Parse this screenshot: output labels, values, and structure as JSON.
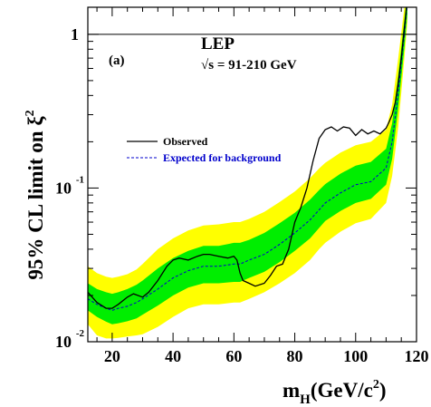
{
  "chart_data": {
    "type": "line",
    "panel_label": "(a)",
    "experiment": "LEP",
    "energy": "√s = 91-210 GeV",
    "xlabel": {
      "main": "m",
      "sub": "H",
      "rest": "(GeV/c",
      "sup": "2",
      "close": ")"
    },
    "ylabel": {
      "main": "95% CL limit on ξ",
      "sup": "2"
    },
    "xlim": [
      12,
      120
    ],
    "ylim": [
      0.01,
      1.5
    ],
    "yscale": "log",
    "x_ticks": [
      "20",
      "40",
      "60",
      "80",
      "100",
      "120"
    ],
    "y_ticks": [
      {
        "value": 1,
        "base": "1",
        "exp": ""
      },
      {
        "value": 0.1,
        "base": "10",
        "exp": "-1"
      },
      {
        "value": 0.01,
        "base": "10",
        "exp": "-2"
      }
    ],
    "reference_line": 1,
    "colors": {
      "band_2sigma": "#ffff00",
      "band_1sigma": "#00ee00",
      "observed": "#000000",
      "expected": "#0000cc",
      "expected_label": "#0000cc"
    },
    "series": [
      {
        "name": "Observed",
        "style": "solid",
        "x": [
          12,
          15,
          18,
          20,
          22,
          25,
          27,
          30,
          32,
          35,
          38,
          40,
          42,
          45,
          48,
          50,
          52,
          55,
          58,
          60,
          61,
          62,
          63,
          65,
          67,
          70,
          72,
          74,
          76,
          78,
          80,
          82,
          84,
          86,
          88,
          90,
          92,
          94,
          96,
          98,
          100,
          102,
          104,
          106,
          108,
          110,
          111,
          112,
          113,
          114,
          115,
          116,
          117
        ],
        "y": [
          0.021,
          0.018,
          0.0165,
          0.0165,
          0.0175,
          0.0195,
          0.0205,
          0.0195,
          0.021,
          0.025,
          0.031,
          0.034,
          0.035,
          0.034,
          0.036,
          0.037,
          0.037,
          0.036,
          0.035,
          0.036,
          0.034,
          0.028,
          0.025,
          0.024,
          0.023,
          0.024,
          0.027,
          0.031,
          0.032,
          0.04,
          0.06,
          0.075,
          0.1,
          0.15,
          0.21,
          0.24,
          0.25,
          0.235,
          0.25,
          0.245,
          0.22,
          0.24,
          0.225,
          0.235,
          0.225,
          0.245,
          0.27,
          0.3,
          0.36,
          0.48,
          0.7,
          1.1,
          1.7
        ]
      },
      {
        "name": "Expected for background",
        "style": "dashed",
        "x": [
          12,
          15,
          18,
          20,
          22,
          25,
          28,
          30,
          35,
          40,
          45,
          50,
          55,
          60,
          62,
          65,
          70,
          75,
          80,
          85,
          88,
          90,
          95,
          100,
          105,
          110,
          112,
          114,
          116,
          117
        ],
        "y": [
          0.019,
          0.0175,
          0.0165,
          0.016,
          0.0165,
          0.017,
          0.018,
          0.019,
          0.022,
          0.026,
          0.029,
          0.031,
          0.031,
          0.032,
          0.032,
          0.034,
          0.037,
          0.043,
          0.051,
          0.062,
          0.072,
          0.08,
          0.093,
          0.105,
          0.11,
          0.135,
          0.2,
          0.42,
          1.0,
          1.6
        ]
      }
    ],
    "bands": {
      "x": [
        12,
        15,
        18,
        20,
        22,
        25,
        28,
        30,
        35,
        40,
        45,
        50,
        55,
        60,
        62,
        65,
        70,
        75,
        80,
        85,
        88,
        90,
        95,
        100,
        105,
        110,
        112,
        114,
        116,
        117
      ],
      "sigma2_low": [
        0.013,
        0.011,
        0.0105,
        0.0105,
        0.0106,
        0.0108,
        0.011,
        0.0112,
        0.0125,
        0.0145,
        0.0165,
        0.0175,
        0.0175,
        0.018,
        0.018,
        0.019,
        0.021,
        0.024,
        0.028,
        0.034,
        0.04,
        0.044,
        0.052,
        0.059,
        0.063,
        0.08,
        0.12,
        0.25,
        0.7,
        1.2
      ],
      "sigma1_low": [
        0.016,
        0.0145,
        0.0135,
        0.013,
        0.0132,
        0.0136,
        0.0142,
        0.015,
        0.0172,
        0.02,
        0.0225,
        0.024,
        0.024,
        0.0245,
        0.0245,
        0.026,
        0.0285,
        0.033,
        0.039,
        0.047,
        0.055,
        0.061,
        0.071,
        0.08,
        0.085,
        0.105,
        0.155,
        0.33,
        0.82,
        1.35
      ],
      "sigma1_high": [
        0.024,
        0.022,
        0.021,
        0.0205,
        0.021,
        0.022,
        0.0235,
        0.025,
        0.03,
        0.035,
        0.039,
        0.042,
        0.042,
        0.044,
        0.044,
        0.046,
        0.051,
        0.059,
        0.069,
        0.084,
        0.097,
        0.106,
        0.124,
        0.14,
        0.148,
        0.18,
        0.265,
        0.54,
        1.25,
        1.9
      ],
      "sigma2_high": [
        0.031,
        0.028,
        0.0265,
        0.026,
        0.0265,
        0.0275,
        0.0295,
        0.032,
        0.04,
        0.047,
        0.053,
        0.057,
        0.058,
        0.06,
        0.06,
        0.063,
        0.07,
        0.081,
        0.095,
        0.116,
        0.134,
        0.146,
        0.17,
        0.19,
        0.2,
        0.24,
        0.35,
        0.7,
        1.5,
        2.2
      ]
    }
  }
}
